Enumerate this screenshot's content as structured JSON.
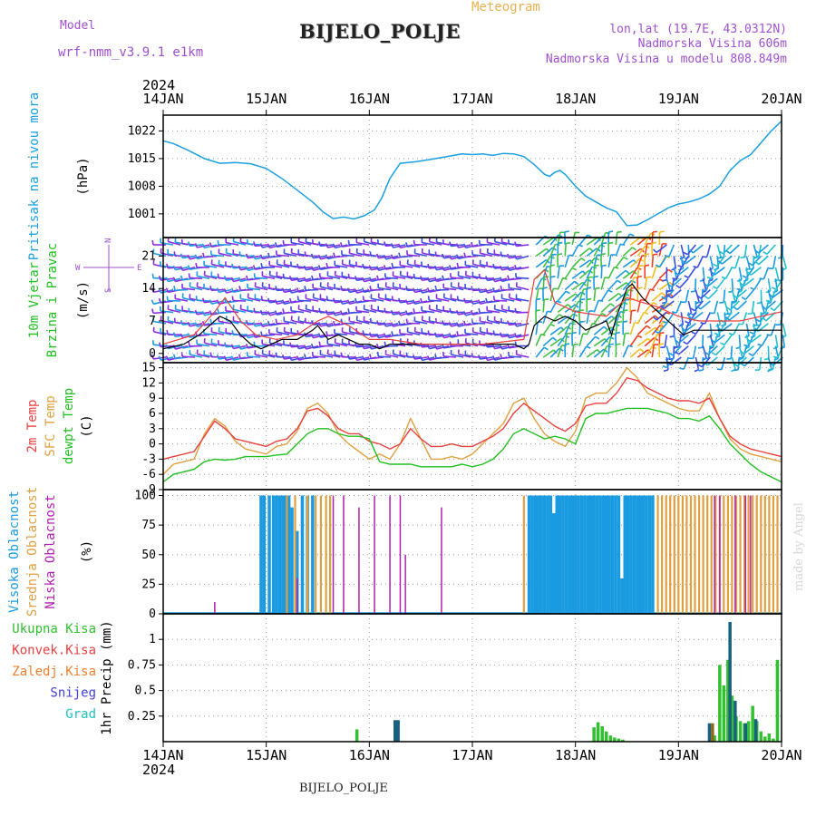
{
  "header": {
    "model_label": "Model",
    "model_name": "wrf-nmm_v3.9.1 e1km",
    "site_name": "BIJELO_POLJE",
    "app_title": "Meteogram",
    "coords": "lon,lat (19.7E, 43.0312N)",
    "altitude": "Nadmorska Visina 606m",
    "model_altitude": "Nadmorska Visina u modelu 808.849m"
  },
  "footer": {
    "site_name": "BIJELO_POLJE",
    "credit": "made by Angel"
  },
  "time_axis": {
    "year": "2024",
    "ticks": [
      "14JAN",
      "15JAN",
      "16JAN",
      "17JAN",
      "18JAN",
      "19JAN",
      "20JAN"
    ],
    "tick_days": [
      0,
      1,
      2,
      3,
      4,
      5,
      6
    ]
  },
  "colors": {
    "pressure": "#1aa0e0",
    "temp_2m": "#e84040",
    "temp_sfc": "#e0a040",
    "temp_dew": "#20c020",
    "cloud_high": "#1a9ae0",
    "cloud_mid": "#e0a040",
    "cloud_low": "#b020b0",
    "precip_total": "#30c030",
    "precip_conv": "#e84040",
    "precip_frozen": "#f08030",
    "precip_snow": "#4040e0",
    "precip_graupel": "#20c0c0",
    "wind_speed": "#000000",
    "wind_gust": "#e84040"
  },
  "chart_data": [
    {
      "type": "line",
      "name": "pressure",
      "ylabel_name": "Pritisak na nivou mora",
      "ylabel_unit": "(hPa)",
      "ylim": [
        995,
        1026
      ],
      "yticks": [
        1001,
        1008,
        1015,
        1022
      ],
      "x": [
        0,
        0.1,
        0.25,
        0.4,
        0.55,
        0.7,
        0.85,
        1.0,
        1.15,
        1.3,
        1.45,
        1.55,
        1.65,
        1.75,
        1.85,
        1.95,
        2.05,
        2.12,
        2.2,
        2.3,
        2.45,
        2.6,
        2.75,
        2.9,
        3.0,
        3.1,
        3.2,
        3.3,
        3.4,
        3.5,
        3.6,
        3.7,
        3.75,
        3.8,
        3.85,
        3.9,
        4.0,
        4.1,
        4.2,
        4.3,
        4.4,
        4.5,
        4.6,
        4.7,
        4.8,
        4.9,
        5.0,
        5.1,
        5.2,
        5.3,
        5.4,
        5.5,
        5.6,
        5.7,
        5.8,
        5.9,
        6.0
      ],
      "y": [
        1019.5,
        1018.8,
        1017.0,
        1015.0,
        1013.8,
        1014.0,
        1013.7,
        1012.5,
        1010.0,
        1007.0,
        1004.0,
        1001.5,
        999.8,
        1000.2,
        999.7,
        1000.5,
        1002.0,
        1005.0,
        1010.0,
        1013.8,
        1014.2,
        1014.8,
        1015.5,
        1016.2,
        1016.0,
        1016.2,
        1015.8,
        1016.3,
        1016.2,
        1015.5,
        1013.5,
        1011.0,
        1010.5,
        1011.5,
        1012.0,
        1011.0,
        1008.0,
        1005.5,
        1004.0,
        1002.5,
        1001.5,
        998.0,
        998.2,
        999.5,
        1001.0,
        1002.5,
        1003.5,
        1004.0,
        1004.8,
        1006.0,
        1008.0,
        1012.0,
        1014.5,
        1016.0,
        1019.0,
        1022.0,
        1024.5
      ]
    },
    {
      "type": "line",
      "name": "wind",
      "ylabel_name": "10m Vjetar Brzina i Pravac",
      "ylabel_unit": "(m/s)",
      "compass": {
        "n": "N",
        "s": "S",
        "e": "E",
        "w": "W"
      },
      "ylim": [
        -2,
        25
      ],
      "yticks": [
        0,
        7,
        14,
        21
      ],
      "speed_x": [
        0,
        0.2,
        0.35,
        0.45,
        0.55,
        0.65,
        0.75,
        0.85,
        0.95,
        1.05,
        1.15,
        1.3,
        1.45,
        1.5,
        1.6,
        1.7,
        1.8,
        1.9,
        2.0,
        2.1,
        2.2,
        2.3,
        2.45,
        2.6,
        2.8,
        3.0,
        3.2,
        3.4,
        3.5,
        3.55,
        3.6,
        3.7,
        3.8,
        3.9,
        4.0,
        4.1,
        4.2,
        4.3,
        4.35,
        4.4,
        4.5,
        4.55,
        4.65,
        4.75,
        4.85,
        4.95,
        5.05,
        5.15,
        5.3,
        5.45,
        5.6,
        5.8,
        6.0
      ],
      "speed": [
        1,
        2,
        4,
        6,
        8,
        7,
        4,
        2,
        1,
        2,
        3,
        3,
        5,
        6,
        3,
        4,
        3,
        2,
        2,
        1,
        2,
        2,
        2,
        2,
        2,
        2,
        2,
        2,
        1,
        2,
        6,
        8,
        7,
        8,
        7,
        5,
        6,
        7,
        4,
        8,
        14,
        15,
        12,
        10,
        8,
        6,
        4,
        5,
        5,
        5,
        5,
        5,
        5
      ],
      "gust_x": [
        0,
        0.3,
        0.5,
        0.6,
        0.75,
        0.9,
        1.1,
        1.3,
        1.5,
        1.6,
        1.8,
        2.0,
        2.2,
        2.5,
        2.8,
        3.1,
        3.5,
        3.6,
        3.7,
        3.8,
        4.0,
        4.3,
        4.5,
        4.8,
        5.0,
        5.2,
        5.4,
        5.6,
        5.8,
        6.0
      ],
      "gust": [
        2,
        4,
        9,
        12,
        7,
        4,
        3,
        4,
        7,
        8,
        6,
        3,
        3,
        2,
        2,
        2,
        3,
        16,
        18,
        11,
        9,
        8,
        12,
        10,
        8,
        7,
        7,
        7,
        8,
        9
      ]
    },
    {
      "type": "line",
      "name": "temperature",
      "ylabel_names": [
        "2m Temp",
        "SFC Temp",
        "dewpt Temp"
      ],
      "ylabel_unit": "(C)",
      "ylim": [
        -9,
        16
      ],
      "yticks": [
        -9,
        -6,
        -3,
        0,
        3,
        6,
        9,
        12,
        15
      ],
      "t2m_x": [
        0,
        0.1,
        0.2,
        0.3,
        0.4,
        0.5,
        0.6,
        0.7,
        0.8,
        0.9,
        1.0,
        1.1,
        1.2,
        1.3,
        1.4,
        1.5,
        1.6,
        1.7,
        1.8,
        1.9,
        2.0,
        2.1,
        2.2,
        2.3,
        2.4,
        2.5,
        2.6,
        2.7,
        2.8,
        2.9,
        3.0,
        3.1,
        3.2,
        3.3,
        3.4,
        3.5,
        3.6,
        3.7,
        3.8,
        3.9,
        4.0,
        4.1,
        4.2,
        4.3,
        4.4,
        4.5,
        4.6,
        4.7,
        4.8,
        4.9,
        5.0,
        5.1,
        5.2,
        5.3,
        5.4,
        5.5,
        5.6,
        5.7,
        5.8,
        5.9,
        6.0
      ],
      "t2m": [
        -3,
        -2.5,
        -2.0,
        -1.5,
        1.5,
        4.5,
        3.0,
        1.0,
        0.5,
        0.0,
        -0.5,
        0.5,
        1.0,
        3.0,
        6.5,
        7.0,
        5.5,
        3.0,
        2.0,
        2.0,
        0.5,
        0.0,
        -1.0,
        0.0,
        3.0,
        1.0,
        -0.5,
        -0.5,
        0.0,
        -0.5,
        -0.5,
        0.5,
        1.5,
        3.0,
        6.0,
        8.0,
        6.5,
        5.0,
        3.5,
        2.5,
        4.0,
        7.5,
        8.0,
        8.0,
        10.0,
        13.0,
        12.5,
        11.0,
        10.0,
        9.0,
        8.5,
        8.5,
        8.0,
        9.0,
        5.0,
        1.5,
        0.0,
        -1.0,
        -1.5,
        -2.0,
        -2.5
      ],
      "tsfc_x": [
        0,
        0.1,
        0.2,
        0.3,
        0.4,
        0.5,
        0.6,
        0.7,
        0.8,
        0.9,
        1.0,
        1.1,
        1.2,
        1.3,
        1.4,
        1.5,
        1.6,
        1.7,
        1.8,
        1.9,
        2.0,
        2.1,
        2.2,
        2.3,
        2.4,
        2.5,
        2.6,
        2.7,
        2.8,
        2.9,
        3.0,
        3.1,
        3.2,
        3.3,
        3.4,
        3.5,
        3.6,
        3.7,
        3.8,
        3.9,
        4.0,
        4.1,
        4.2,
        4.3,
        4.4,
        4.5,
        4.6,
        4.7,
        4.8,
        4.9,
        5.0,
        5.1,
        5.2,
        5.3,
        5.4,
        5.5,
        5.6,
        5.7,
        5.8,
        5.9,
        6.0
      ],
      "tsfc": [
        -6,
        -4,
        -3.5,
        -3,
        2,
        5,
        3.5,
        0.5,
        -1,
        -1.5,
        -2,
        -0.5,
        0,
        2.5,
        7,
        8,
        6,
        2,
        0,
        -1.5,
        -3,
        -2.0,
        -3.0,
        0.0,
        5.0,
        1.0,
        -3.0,
        -3.0,
        -2.5,
        -3.0,
        -2.0,
        0.0,
        2.0,
        4.0,
        8.0,
        9.0,
        5.0,
        2.0,
        0.5,
        -0.5,
        2.5,
        9.0,
        10.0,
        10.0,
        12.0,
        15.0,
        13.0,
        10.0,
        9.0,
        8.0,
        7.0,
        6.5,
        6.5,
        10.0,
        5.0,
        1.0,
        -1.0,
        -2.0,
        -2.5,
        -3.0,
        -3.5
      ],
      "tdew_x": [
        0,
        0.1,
        0.2,
        0.3,
        0.4,
        0.5,
        0.6,
        0.7,
        0.8,
        0.9,
        1.0,
        1.1,
        1.2,
        1.3,
        1.4,
        1.5,
        1.6,
        1.7,
        1.8,
        1.9,
        2.0,
        2.1,
        2.2,
        2.3,
        2.4,
        2.5,
        2.6,
        2.7,
        2.8,
        2.9,
        3.0,
        3.1,
        3.2,
        3.3,
        3.4,
        3.5,
        3.6,
        3.7,
        3.8,
        3.9,
        4.0,
        4.1,
        4.2,
        4.3,
        4.4,
        4.5,
        4.6,
        4.7,
        4.8,
        4.9,
        5.0,
        5.1,
        5.2,
        5.3,
        5.4,
        5.5,
        5.6,
        5.7,
        5.8,
        5.9,
        6.0
      ],
      "tdew": [
        -7.5,
        -6,
        -5.5,
        -5,
        -3.5,
        -3.0,
        -3.2,
        -3.0,
        -2.5,
        -2.5,
        -2.5,
        -2.2,
        -2.0,
        0.0,
        2.0,
        3.0,
        3.0,
        2.0,
        1.5,
        1.5,
        1.0,
        -3.5,
        -4.0,
        -4.0,
        -4.0,
        -4.5,
        -4.5,
        -4.5,
        -4.5,
        -4.0,
        -4.5,
        -4.0,
        -3.0,
        -1.0,
        2.0,
        3.0,
        2.0,
        1.0,
        1.5,
        1.0,
        0.0,
        5.0,
        6.0,
        6.0,
        6.5,
        7.0,
        7.0,
        7.0,
        6.5,
        6.0,
        5.0,
        5.0,
        4.5,
        5.5,
        3.0,
        0.0,
        -2.0,
        -4.0,
        -5.5,
        -6.5,
        -7.5
      ]
    },
    {
      "type": "bar",
      "name": "cloud_cover",
      "ylabel_names": [
        "Visoka Oblacnost",
        "Srednja Oblacnost",
        "Niska Oblacnost"
      ],
      "ylabel_unit": "(%)",
      "ylim": [
        0,
        105
      ],
      "yticks": [
        0,
        25,
        50,
        75,
        100
      ],
      "high": {
        "x": [
          0.95,
          0.98,
          1.03,
          1.07,
          1.1,
          1.13,
          1.16,
          1.19,
          1.22,
          1.25,
          1.3,
          1.35,
          1.4,
          1.45,
          3.55,
          3.58,
          3.61,
          3.64,
          3.67,
          3.7,
          3.73,
          3.76,
          3.79,
          3.82,
          3.85,
          3.88,
          3.91,
          3.94,
          3.97,
          4.0,
          4.03,
          4.06,
          4.09,
          4.12,
          4.15,
          4.18,
          4.21,
          4.24,
          4.27,
          4.3,
          4.33,
          4.36,
          4.39,
          4.42,
          4.45,
          4.48,
          4.51,
          4.54,
          4.57,
          4.6,
          4.63,
          4.66,
          4.69,
          4.72,
          4.75
        ],
        "values": [
          100,
          100,
          100,
          100,
          100,
          100,
          100,
          100,
          100,
          90,
          70,
          100,
          100,
          100,
          100,
          100,
          100,
          100,
          100,
          100,
          100,
          100,
          85,
          100,
          100,
          100,
          100,
          100,
          100,
          100,
          100,
          100,
          100,
          100,
          100,
          100,
          100,
          100,
          100,
          100,
          100,
          100,
          100,
          100,
          30,
          100,
          100,
          100,
          100,
          100,
          100,
          100,
          100,
          100,
          100
        ]
      },
      "mid": {
        "x": [
          1.2,
          1.28,
          1.4,
          1.48,
          1.53,
          1.58,
          1.62,
          3.5,
          4.8,
          4.84,
          4.88,
          4.92,
          4.96,
          5.0,
          5.04,
          5.08,
          5.12,
          5.16,
          5.2,
          5.24,
          5.28,
          5.32,
          5.36,
          5.4,
          5.44,
          5.48,
          5.52,
          5.56,
          5.6,
          5.64,
          5.68,
          5.72,
          5.76,
          5.8,
          5.84,
          5.88,
          5.92,
          5.96
        ],
        "values": [
          100,
          100,
          100,
          100,
          100,
          100,
          100,
          100,
          100,
          100,
          100,
          100,
          100,
          100,
          100,
          100,
          100,
          100,
          100,
          100,
          100,
          100,
          100,
          100,
          100,
          100,
          100,
          100,
          100,
          100,
          100,
          100,
          100,
          100,
          100,
          100,
          100,
          100
        ]
      },
      "low": {
        "x": [
          0.5,
          1.3,
          1.65,
          1.75,
          1.9,
          2.05,
          2.2,
          2.3,
          2.35,
          2.7,
          5.35,
          5.4,
          5.55,
          5.65,
          5.7
        ],
        "values": [
          10,
          30,
          100,
          100,
          90,
          100,
          100,
          100,
          50,
          90,
          100,
          100,
          100,
          100,
          100
        ]
      }
    },
    {
      "type": "bar",
      "name": "precipitation",
      "legend": [
        "Ukupna Kisa",
        "Konvek.Kisa",
        "Zaledj.Kisa",
        "Snijeg",
        "Grad"
      ],
      "ylabel": "1hr Precip (mm)",
      "ylim": [
        0,
        1.25
      ],
      "yticks": [
        0.25,
        0.5,
        0.75,
        1
      ],
      "total": {
        "x": [
          1.88,
          4.18,
          4.22,
          4.26,
          4.3,
          4.34,
          4.38,
          4.42,
          4.46,
          5.35,
          5.4,
          5.44,
          5.48,
          5.52,
          5.56,
          5.6,
          5.64,
          5.68,
          5.72,
          5.76,
          5.8,
          5.84,
          5.88,
          5.92,
          5.96
        ],
        "values": [
          0.12,
          0.14,
          0.19,
          0.15,
          0.1,
          0.06,
          0.04,
          0.03,
          0.02,
          0.06,
          0.75,
          0.55,
          0.8,
          0.45,
          0.25,
          0.2,
          0.18,
          0.2,
          0.35,
          0.2,
          0.1,
          0.05,
          0.08,
          0.03,
          0.8
        ]
      },
      "snow": {
        "x": [
          2.25,
          2.28,
          5.3,
          5.5,
          5.55,
          5.65,
          5.75
        ],
        "values": [
          0.21,
          0.21,
          0.18,
          1.17,
          0.4,
          0.18,
          0.22
        ]
      },
      "frozen": {
        "x": [
          5.33
        ],
        "values": [
          0.18
        ]
      }
    }
  ]
}
